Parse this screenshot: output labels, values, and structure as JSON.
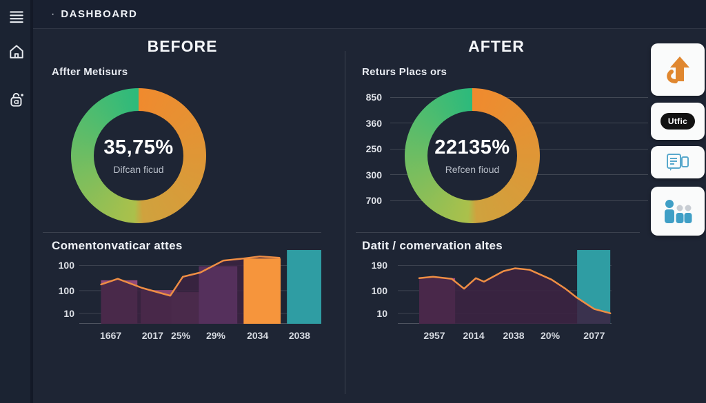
{
  "header": {
    "bullet": "·",
    "title": "DASHBOARD"
  },
  "sidebar": {
    "icons": [
      "menu-icon",
      "home-icon",
      "lock-icon"
    ]
  },
  "before": {
    "heading": "BEFORE",
    "metric_label": "Affter Metisurs"
  },
  "after": {
    "heading": "AFTER",
    "metric_label": "Returs Placs ors"
  },
  "right_rail": {
    "cards": [
      {
        "name": "growth-arrow-card",
        "icon": "arrow-up-icon"
      },
      {
        "name": "utfic-badge-card",
        "label": "Utfic"
      },
      {
        "name": "report-card",
        "icon": "document-chat-icon"
      },
      {
        "name": "team-card",
        "icon": "people-icon"
      }
    ]
  },
  "colors": {
    "background": "#1e2534",
    "donut_orange": "#f08a2e",
    "donut_gold": "#cfa23e",
    "donut_yellow_green": "#abc04b",
    "donut_green": "#2cba7c",
    "line_orange": "#ef8e44",
    "bar_mauve": "#91497a",
    "bar_dark_purple": "#55305c",
    "bar_magenta": "#a04a84",
    "bar_orange": "#f6953c",
    "bar_teal": "#2f9da3",
    "area_purple": "#3c2342"
  },
  "chart_data": [
    {
      "type": "pie",
      "id": "before-donut",
      "center_value": "35,75%",
      "center_caption": "Difcan ficud",
      "slices": [
        {
          "label": "left-half",
          "pct": 50,
          "color": "#2cba7c"
        },
        {
          "label": "right-half",
          "pct": 50,
          "color": "#f08a2e"
        }
      ],
      "gradient": [
        "#f08a2e",
        "#cfa23e",
        "#abc04b",
        "#2cba7c"
      ]
    },
    {
      "type": "pie",
      "id": "after-donut",
      "center_value": "22135%",
      "center_caption": "Refcen fioud",
      "slices": [
        {
          "label": "left-half",
          "pct": 50,
          "color": "#2cba7c"
        },
        {
          "label": "right-half",
          "pct": 50,
          "color": "#f08a2e"
        }
      ],
      "gradient": [
        "#f08a2e",
        "#cfa23e",
        "#abc04b",
        "#2cba7c"
      ],
      "axis_labels": [
        {
          "label": "850"
        },
        {
          "label": "360"
        },
        {
          "label": "250"
        },
        {
          "label": "300"
        },
        {
          "label": "700"
        }
      ]
    },
    {
      "type": "bar",
      "id": "before-bars",
      "title": "Comentonvaticar attes",
      "ylim": [
        0,
        200
      ],
      "grid": true,
      "ylabels": [
        {
          "label": "100",
          "top": 21
        },
        {
          "label": "100",
          "top": 55
        },
        {
          "label": "10",
          "top": 86
        }
      ],
      "categories": [
        {
          "label": "1667",
          "x": 13
        },
        {
          "label": "2017",
          "x": 30.3
        },
        {
          "label": "25%",
          "x": 41.9
        },
        {
          "label": "29%",
          "x": 56.4
        },
        {
          "label": "2034",
          "x": 73.7
        },
        {
          "label": "2038",
          "x": 91
        }
      ],
      "bars_back": [
        {
          "name": "1667",
          "x": 9,
          "w": 15,
          "h": 59,
          "color": "#91497a"
        },
        {
          "name": "2017",
          "x": 25.4,
          "w": 15,
          "h": 45.7,
          "color": "#8c4673"
        },
        {
          "name": "25%",
          "x": 38,
          "w": 14,
          "h": 42.9,
          "color": "#9a5183"
        }
      ],
      "area": {
        "color": "#3c2342",
        "opacity": 0.85
      },
      "bars_front": [
        {
          "name": "29%",
          "x": 49.4,
          "w": 15.9,
          "h": 78.1,
          "color": "#55305c"
        },
        {
          "name": "2034",
          "x": 67.9,
          "w": 15.3,
          "h": 88.6,
          "color": "#f6953c"
        },
        {
          "name": "2038",
          "x": 85.8,
          "w": 14.2,
          "h": 100,
          "color": "#2f9da3"
        }
      ],
      "line": {
        "color": "#ef8e44",
        "points": [
          [
            9,
            53.3
          ],
          [
            15.9,
            61
          ],
          [
            26,
            48.6
          ],
          [
            37.6,
            38.1
          ],
          [
            42.8,
            63.8
          ],
          [
            50,
            69.5
          ],
          [
            59.5,
            85.7
          ],
          [
            67.9,
            88.6
          ],
          [
            74.6,
            91.4
          ],
          [
            82.7,
            89.5
          ]
        ]
      }
    },
    {
      "type": "bar",
      "id": "after-bars",
      "title": "Datit / comervation altes",
      "ylim": [
        0,
        200
      ],
      "grid": true,
      "ylabels": [
        {
          "label": "190",
          "top": 21
        },
        {
          "label": "100",
          "top": 55
        },
        {
          "label": "10",
          "top": 86
        }
      ],
      "categories": [
        {
          "label": "2957",
          "x": 17.1
        },
        {
          "label": "2014",
          "x": 35.5
        },
        {
          "label": "2038",
          "x": 54.2
        },
        {
          "label": "20%",
          "x": 71.3
        },
        {
          "label": "2077",
          "x": 91.9
        }
      ],
      "bars_back": [
        {
          "name": "2957",
          "x": 10,
          "w": 16.8,
          "h": 61.9,
          "color": "#a04a84"
        },
        {
          "name": "2077",
          "x": 83.9,
          "w": 15.5,
          "h": 100,
          "color": "#2f9da3"
        }
      ],
      "area": {
        "color": "#3c2342",
        "opacity": 0.88
      },
      "bars_front": [],
      "line": {
        "color": "#ef8e44",
        "points": [
          [
            10,
            61.9
          ],
          [
            16.5,
            63.8
          ],
          [
            25.2,
            61
          ],
          [
            31,
            47.6
          ],
          [
            36.5,
            61.9
          ],
          [
            40.3,
            57.1
          ],
          [
            49.4,
            71.4
          ],
          [
            54.8,
            75.2
          ],
          [
            61.6,
            73.3
          ],
          [
            71.9,
            60
          ],
          [
            78.4,
            47.6
          ],
          [
            83.9,
            35.2
          ],
          [
            91.9,
            20
          ],
          [
            99.4,
            14.3
          ]
        ]
      }
    }
  ]
}
